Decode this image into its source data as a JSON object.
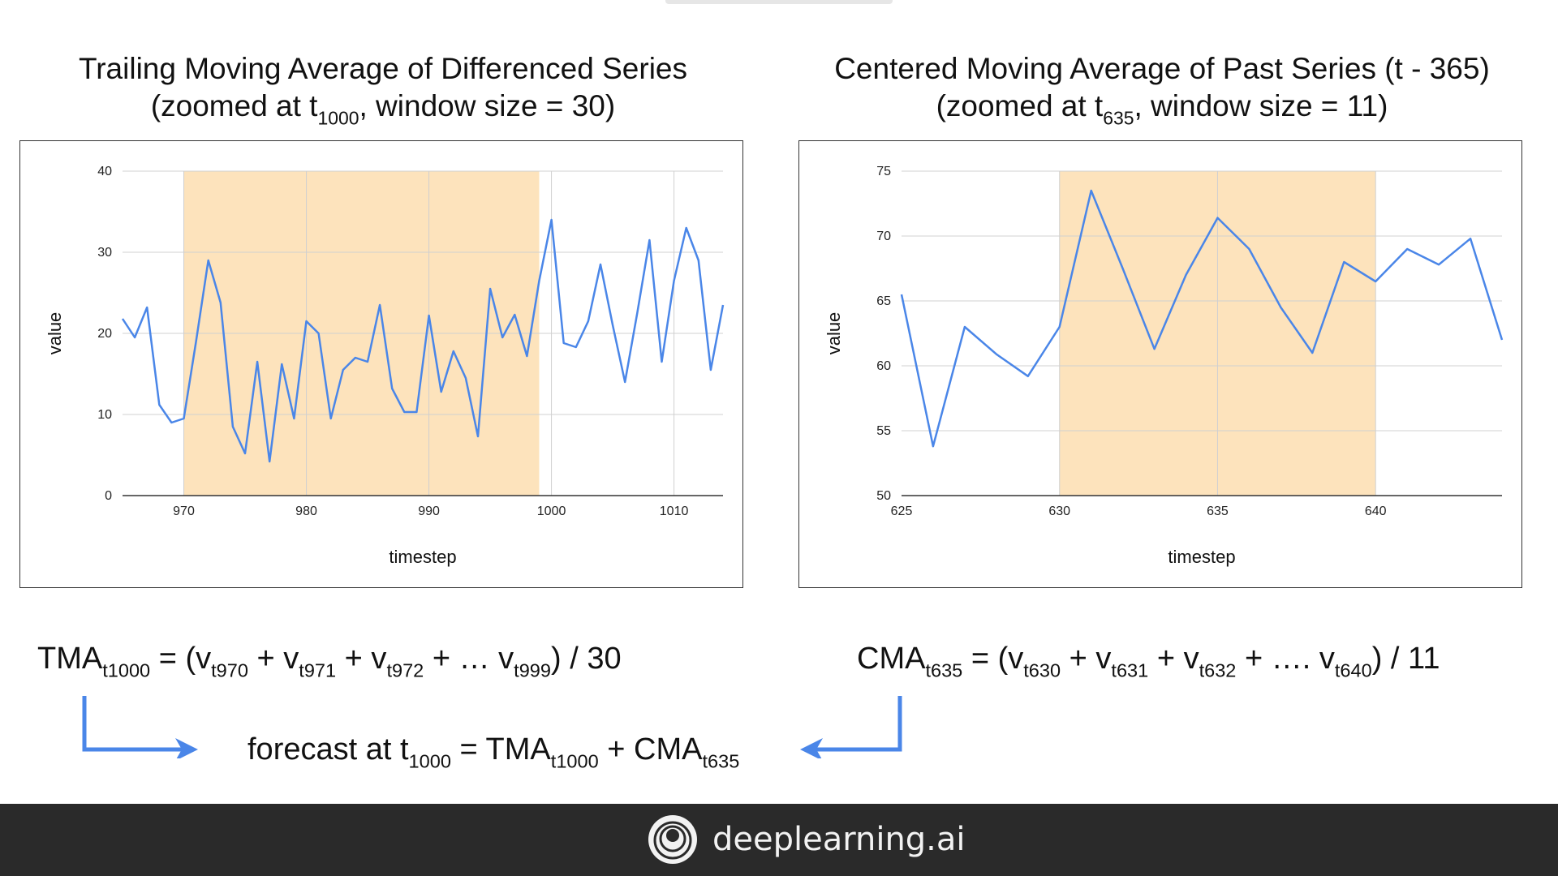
{
  "charts": [
    {
      "title_line1": "Trailing Moving Average of Differenced Series",
      "title_line2_pre": "(zoomed at t",
      "title_line2_sub": "1000",
      "title_line2_post": ", window size = 30)"
    },
    {
      "title_line1": "Centered Moving Average of Past Series (t - 365)",
      "title_line2_pre": "(zoomed at t",
      "title_line2_sub": "635",
      "title_line2_post": ", window size = 11)"
    }
  ],
  "chart_data": [
    {
      "type": "line",
      "title": "Trailing Moving Average of Differenced Series (zoomed at t1000, window size = 30)",
      "xlabel": "timestep",
      "ylabel": "value",
      "xlim": [
        965,
        1014
      ],
      "ylim": [
        0,
        40
      ],
      "xticks": [
        970,
        980,
        990,
        1000,
        1010
      ],
      "yticks": [
        0,
        10,
        20,
        30,
        40
      ],
      "grid": true,
      "line_color": "#4a86e8",
      "highlight": {
        "x_start": 970,
        "x_end": 999,
        "color": "#fde3bc"
      },
      "series": [
        {
          "x": [
            965,
            966,
            967,
            968,
            969,
            970,
            971,
            972,
            973,
            974,
            975,
            976,
            977,
            978,
            979,
            980,
            981,
            982,
            983,
            984,
            985,
            986,
            987,
            988,
            989,
            990,
            991,
            992,
            993,
            994,
            995,
            996,
            997,
            998,
            999,
            1000,
            1001,
            1002,
            1003,
            1004,
            1005,
            1006,
            1007,
            1008,
            1009,
            1010,
            1011,
            1012,
            1013,
            1014
          ],
          "values": [
            21.8,
            19.5,
            23.2,
            11.2,
            9.0,
            9.5,
            19.0,
            29.0,
            23.8,
            8.5,
            5.2,
            16.5,
            4.2,
            16.2,
            9.5,
            21.5,
            20.0,
            9.5,
            15.5,
            17.0,
            16.5,
            23.5,
            13.2,
            10.3,
            10.3,
            22.2,
            12.8,
            17.8,
            14.5,
            7.3,
            25.5,
            19.5,
            22.3,
            17.2,
            26.5,
            34.0,
            18.8,
            18.3,
            21.5,
            28.5,
            21.0,
            14.0,
            22.5,
            31.5,
            16.5,
            26.5,
            33.0,
            29.0,
            15.5,
            23.5
          ]
        }
      ]
    },
    {
      "type": "line",
      "title": "Centered Moving Average of Past Series (t - 365) (zoomed at t635, window size = 11)",
      "xlabel": "timestep",
      "ylabel": "value",
      "xlim": [
        625,
        644
      ],
      "ylim": [
        50,
        75
      ],
      "xticks": [
        625,
        630,
        635,
        640
      ],
      "yticks": [
        50,
        55,
        60,
        65,
        70,
        75
      ],
      "grid": true,
      "line_color": "#4a86e8",
      "highlight": {
        "x_start": 630,
        "x_end": 640,
        "color": "#fde3bc"
      },
      "series": [
        {
          "x": [
            625,
            626,
            627,
            628,
            629,
            630,
            631,
            632,
            633,
            634,
            635,
            636,
            637,
            638,
            639,
            640,
            641,
            642,
            643,
            644
          ],
          "values": [
            65.5,
            53.8,
            63.0,
            60.9,
            59.2,
            63.0,
            73.5,
            67.5,
            61.3,
            67.0,
            71.4,
            69.0,
            64.5,
            61.0,
            68.0,
            66.5,
            69.0,
            67.8,
            69.8,
            62.0
          ]
        }
      ]
    }
  ],
  "formulas": {
    "tma": {
      "lhs": "TMA",
      "lhs_sub": "t1000",
      "p1": " = (v",
      "s1": "t970",
      "p2": " + v",
      "s2": "t971",
      "p3": " + v",
      "s3": "t972",
      "p4": " + … v",
      "s4": "t999",
      "p5": ") / 30"
    },
    "cma": {
      "lhs": "CMA",
      "lhs_sub": "t635",
      "p1": " = (v",
      "s1": "t630",
      "p2": " + v",
      "s2": "t631",
      "p3": " + v",
      "s3": "t632",
      "p4": " + …. v",
      "s4": "t640",
      "p5": ") / 11"
    },
    "forecast": {
      "p1": "forecast at  t",
      "s1": "1000",
      "p2": " = TMA",
      "s2": "t1000",
      "p3": "  + CMA",
      "s3": "t635"
    }
  },
  "arrow_color": "#4a86e8",
  "footer": {
    "brand": "deeplearning.ai",
    "logo_icon": "deeplearning-logo-icon"
  }
}
